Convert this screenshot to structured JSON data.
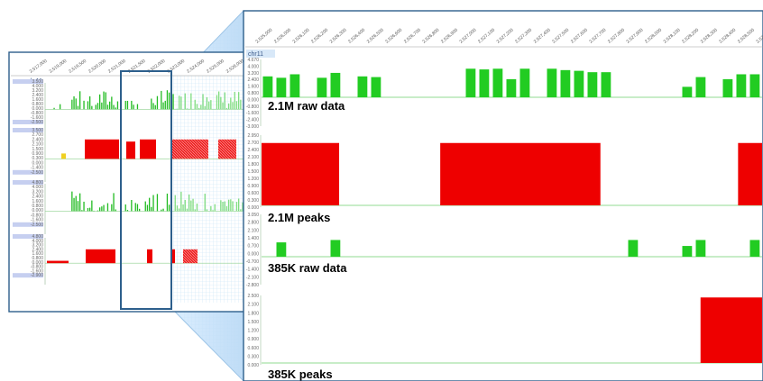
{
  "overview": {
    "chrom": "chr11",
    "top_ticks": [
      "2,517,000",
      "2,519,000",
      "2,519,500",
      "2,520,000",
      "2,521,000",
      "2,521,500",
      "2,522,000",
      "2,523,000",
      "2,524,000",
      "2,525,000",
      "2,526,000",
      "2,527,000"
    ],
    "track_axes": [
      [
        "3.500",
        "4.000",
        "3.200",
        "2.400",
        "1.600",
        "0.800",
        "0.000",
        "-0.800",
        "-1.600",
        "-2.500"
      ],
      [
        "3.500",
        "2.700",
        "2.400",
        "2.100",
        "1.500",
        "0.900",
        "0.300",
        "0.000",
        "-1.400",
        "-2.500"
      ],
      [
        "4.800",
        "4.000",
        "3.200",
        "2.400",
        "1.600",
        "0.800",
        "0.000",
        "-0.800",
        "-1.600",
        "-2.500"
      ],
      [
        "4.800",
        "4.000",
        "3.200",
        "2.400",
        "1.600",
        "0.800",
        "0.000",
        "-0.800",
        "-1.600",
        "-2.900"
      ]
    ]
  },
  "zoom": {
    "chrom": "chr11",
    "top_ticks": [
      "2,525,000",
      "2,526,000",
      "2,526,100",
      "2,526,200",
      "2,526,300",
      "2,526,400",
      "2,526,500",
      "2,526,600",
      "2,526,700",
      "2,526,800",
      "2,526,900",
      "2,527,000",
      "2,527,100",
      "2,527,200",
      "2,527,300",
      "2,527,400",
      "2,527,500",
      "2,527,600",
      "2,527,700",
      "2,527,800",
      "2,527,900",
      "2,528,000",
      "2,528,100",
      "2,528,200",
      "2,528,300",
      "2,528,400",
      "2,528,500",
      "2,528,600"
    ],
    "tracks": [
      {
        "label": "2.1M raw data",
        "type": "bar",
        "color": "#22cc22",
        "yticks": [
          "4.670",
          "4.000",
          "3.200",
          "2.400",
          "1.600",
          "0.800",
          "0.000",
          "-0.800",
          "-1.600",
          "-2.400",
          "-3.000"
        ],
        "values": [
          3.0,
          2.8,
          3.3,
          0,
          2.8,
          3.5,
          0,
          3.0,
          2.9,
          0,
          0,
          0,
          0,
          0,
          0,
          4.1,
          4.0,
          4.1,
          2.6,
          4.1,
          0,
          4.1,
          3.9,
          3.8,
          3.6,
          3.6,
          0,
          0,
          0,
          0,
          0,
          1.5,
          2.9,
          0,
          2.6,
          3.3,
          3.3
        ]
      },
      {
        "label": "2.1M peaks",
        "type": "bar",
        "color": "#ee0000",
        "yticks": [
          "2.950",
          "2.700",
          "2.400",
          "2.100",
          "1.800",
          "1.500",
          "1.200",
          "0.900",
          "0.600",
          "0.300",
          "0.000"
        ],
        "segments": [
          [
            0.0,
            0.155
          ],
          [
            0.357,
            0.677
          ],
          [
            0.952,
            1.0
          ]
        ],
        "value": 2.7
      },
      {
        "label": "385K raw data",
        "type": "bar",
        "color": "#22cc22",
        "yticks": [
          "3.050",
          "2.800",
          "2.100",
          "1.400",
          "0.700",
          "0.000",
          "-0.700",
          "-1.400",
          "-2.100",
          "-2.800"
        ],
        "values": [
          0,
          1.2,
          0,
          0,
          0,
          1.4,
          0,
          0,
          0,
          0,
          0,
          0,
          0,
          0,
          0,
          0,
          0,
          0,
          0,
          0,
          0,
          0,
          0,
          0,
          0,
          0,
          0,
          1.4,
          0,
          0,
          0,
          0.9,
          1.4,
          0,
          0,
          0,
          1.4
        ]
      },
      {
        "label": "385K peaks",
        "type": "bar",
        "color": "#ee0000",
        "yticks": [
          "2.500",
          "2.100",
          "1.800",
          "1.500",
          "1.200",
          "0.900",
          "0.600",
          "0.300",
          "0.000"
        ],
        "segments": [
          [
            0.877,
            1.0
          ]
        ],
        "value": 2.5
      }
    ]
  }
}
